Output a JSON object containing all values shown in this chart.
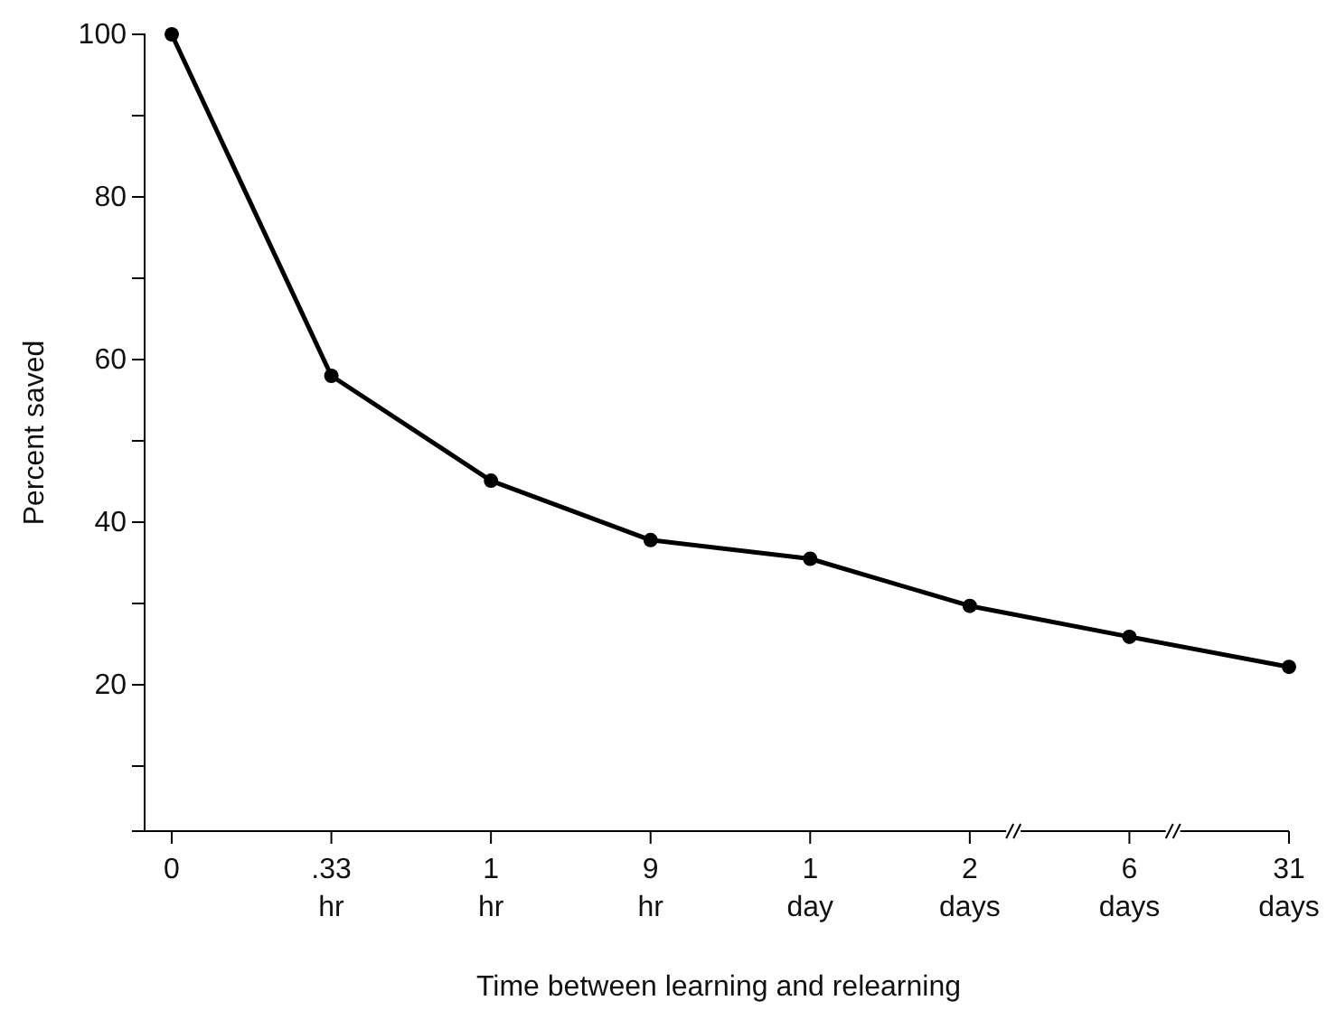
{
  "chart_data": {
    "type": "line",
    "xlabel": "Time between learning and relearning",
    "ylabel": "Percent saved",
    "categories": [
      "0",
      ".33 hr",
      "1 hr",
      "9 hr",
      "1 day",
      "2 days",
      "6 days",
      "31 days"
    ],
    "series": [
      {
        "color": "#000000",
        "values": [
          100,
          58,
          45.1,
          37.8,
          35.5,
          29.7,
          25.9,
          22.2
        ]
      }
    ],
    "ylim": [
      2,
      100
    ],
    "yticks": [
      {
        "value": 10,
        "label": null
      },
      20,
      {
        "value": 30,
        "label": null
      },
      40,
      {
        "value": 50,
        "label": null
      },
      60,
      {
        "value": 70,
        "label": null
      },
      80,
      {
        "value": 90,
        "label": null
      },
      100
    ],
    "grid": false,
    "marker": "circle",
    "line_style": "solid"
  }
}
